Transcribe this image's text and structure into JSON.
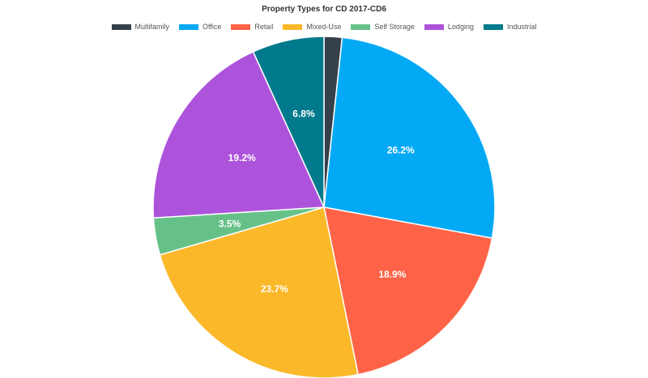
{
  "chart_data": {
    "type": "pie",
    "title": "Property Types for CD 2017-CD6",
    "legend_position": "top",
    "categories": [
      "Multifamily",
      "Office",
      "Retail",
      "Mixed-Use",
      "Self Storage",
      "Lodging",
      "Industrial"
    ],
    "values": [
      1.7,
      26.2,
      18.9,
      23.7,
      3.5,
      19.2,
      6.8
    ],
    "labels": [
      "",
      "26.2%",
      "18.9%",
      "23.7%",
      "3.5%",
      "19.2%",
      "6.8%"
    ],
    "colors": [
      "#36404a",
      "#03a9f4",
      "#ff6347",
      "#fbb829",
      "#66c188",
      "#ad53db",
      "#007a8c"
    ]
  },
  "legend": [
    {
      "label": "Multifamily",
      "color": "#36404a"
    },
    {
      "label": "Office",
      "color": "#03a9f4"
    },
    {
      "label": "Retail",
      "color": "#ff6347"
    },
    {
      "label": "Mixed-Use",
      "color": "#fbb829"
    },
    {
      "label": "Self Storage",
      "color": "#66c188"
    },
    {
      "label": "Lodging",
      "color": "#ad53db"
    },
    {
      "label": "Industrial",
      "color": "#007a8c"
    }
  ]
}
